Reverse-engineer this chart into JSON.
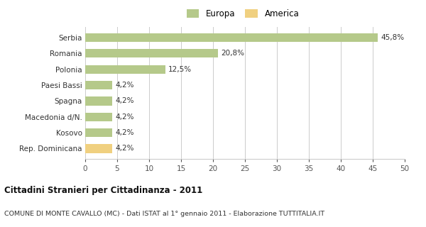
{
  "categories": [
    "Rep. Dominicana",
    "Kosovo",
    "Macedonia d/N.",
    "Spagna",
    "Paesi Bassi",
    "Polonia",
    "Romania",
    "Serbia"
  ],
  "values": [
    4.2,
    4.2,
    4.2,
    4.2,
    4.2,
    12.5,
    20.8,
    45.8
  ],
  "labels": [
    "4,2%",
    "4,2%",
    "4,2%",
    "4,2%",
    "4,2%",
    "12,5%",
    "20,8%",
    "45,8%"
  ],
  "colors": [
    "#f0d080",
    "#b5c98a",
    "#b5c98a",
    "#b5c98a",
    "#b5c98a",
    "#b5c98a",
    "#b5c98a",
    "#b5c98a"
  ],
  "legend_items": [
    {
      "label": "Europa",
      "color": "#b5c98a"
    },
    {
      "label": "America",
      "color": "#f0d080"
    }
  ],
  "xlim": [
    0,
    50
  ],
  "xticks": [
    0,
    5,
    10,
    15,
    20,
    25,
    30,
    35,
    40,
    45,
    50
  ],
  "title": "Cittadini Stranieri per Cittadinanza - 2011",
  "subtitle": "COMUNE DI MONTE CAVALLO (MC) - Dati ISTAT al 1° gennaio 2011 - Elaborazione TUTTITALIA.IT",
  "bar_height": 0.55,
  "background_color": "#ffffff",
  "grid_color": "#cccccc"
}
